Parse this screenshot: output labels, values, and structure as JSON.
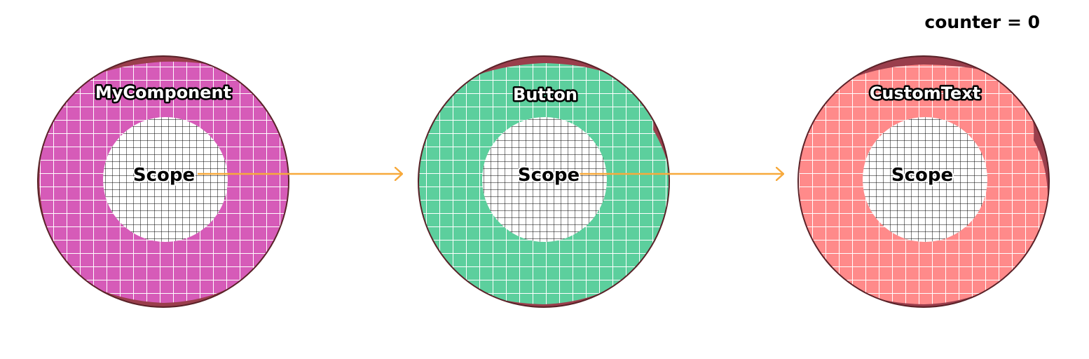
{
  "counter": {
    "text": "counter = 0"
  },
  "colors": {
    "rim": "#5a2228",
    "rim_shade": "#9a3e4c",
    "grid_line": "#ffffff",
    "scope_fill": "#ffffff",
    "scope_grid": "#000000",
    "arrow": "#f7a93b"
  },
  "components": [
    {
      "label": "MyComponent",
      "scope_label": "Scope",
      "color": "#d65bb8"
    },
    {
      "label": "Button",
      "scope_label": "Scope",
      "color": "#5ccf9d"
    },
    {
      "label": "CustomText",
      "scope_label": "Scope",
      "color": "#ff8a8a"
    }
  ]
}
